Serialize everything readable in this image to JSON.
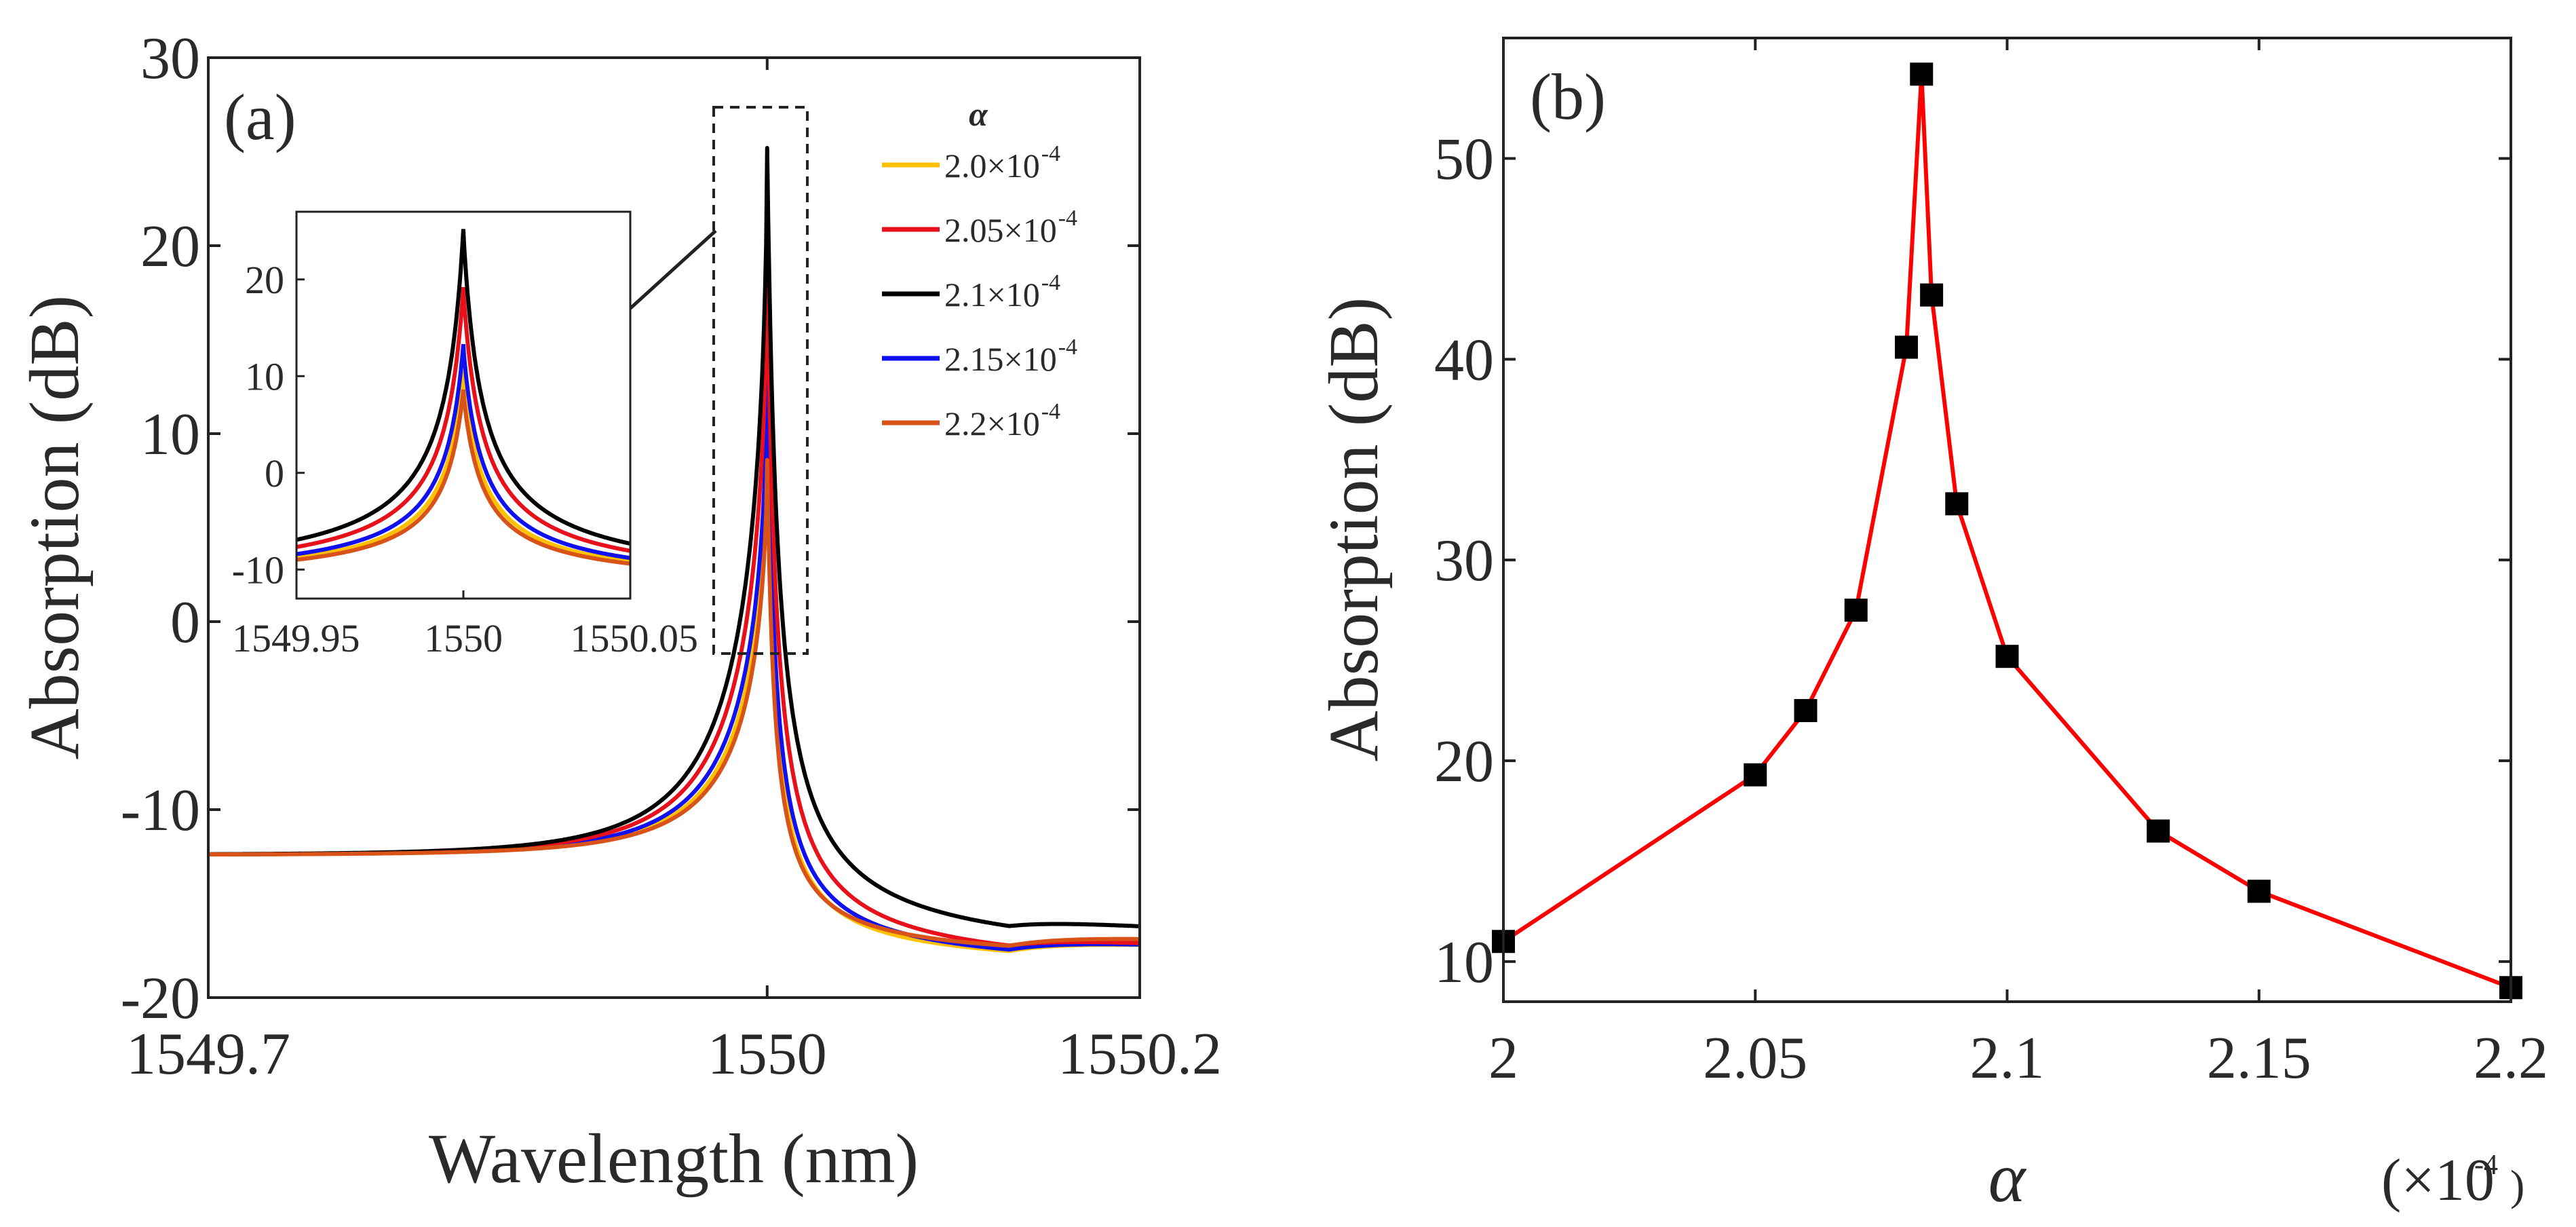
{
  "chart_data": [
    {
      "panel": "(a)",
      "type": "line",
      "xlabel": "Wavelength (nm)",
      "ylabel": "Absorption (dB)",
      "xlim": [
        1549.7,
        1550.2
      ],
      "ylim": [
        -20,
        30
      ],
      "x_ticks": [
        "1549.7",
        "1550",
        "1550.2"
      ],
      "y_ticks": [
        "-20",
        "-10",
        "0",
        "10",
        "20",
        "30"
      ],
      "legend_title": "α",
      "legend_position": "top-right",
      "series": [
        {
          "name": "2.0×10⁻⁴",
          "label_main": "2.0×10",
          "label_exp": "-4",
          "alpha": 0.0002,
          "color": "#FFC000",
          "peak_db": 10.5,
          "tail_db": -18.6
        },
        {
          "name": "2.05×10⁻⁴",
          "label_main": "2.05×10",
          "label_exp": "-4",
          "alpha": 0.000205,
          "color": "#E8101A",
          "peak_db": 19.2,
          "tail_db": -18.9
        },
        {
          "name": "2.1×10⁻⁴",
          "label_main": "2.1×10",
          "label_exp": "-4",
          "alpha": 0.00021,
          "color": "#000000",
          "peak_db": 25.2,
          "tail_db": -18.3
        },
        {
          "name": "2.15×10⁻⁴",
          "label_main": "2.15×10",
          "label_exp": "-4",
          "alpha": 0.000215,
          "color": "#1010F0",
          "peak_db": 13.3,
          "tail_db": -18.7
        },
        {
          "name": "2.2×10⁻⁴",
          "label_main": "2.2×10",
          "label_exp": "-4",
          "alpha": 0.00022,
          "color": "#D95319",
          "peak_db": 8.6,
          "tail_db": -18.2
        }
      ],
      "inset": {
        "xlim": [
          1549.95,
          1550.05
        ],
        "ylim": [
          -13,
          27
        ],
        "x_ticks": [
          "1549.95",
          "1550",
          "1550.05"
        ],
        "y_ticks": [
          "-10",
          "0",
          "10",
          "20"
        ]
      }
    },
    {
      "panel": "(b)",
      "type": "line",
      "xlabel": "α",
      "x_multiplier": "(×10",
      "x_multiplier_exp": "-4",
      "x_multiplier_close": ")",
      "ylabel": "Absorption (dB)",
      "xlim": [
        2.0,
        2.2
      ],
      "ylim": [
        8,
        56
      ],
      "x_ticks": [
        "2",
        "2.05",
        "2.1",
        "2.15",
        "2.2"
      ],
      "y_ticks": [
        "10",
        "20",
        "30",
        "40",
        "50"
      ],
      "line_color": "#FF0000",
      "marker_color": "#000000",
      "x": [
        2.0,
        2.05,
        2.06,
        2.07,
        2.08,
        2.083,
        2.085,
        2.09,
        2.1,
        2.13,
        2.15,
        2.2
      ],
      "y": [
        11.0,
        19.3,
        22.5,
        27.5,
        40.6,
        54.2,
        43.2,
        32.8,
        25.2,
        16.5,
        13.5,
        8.7
      ]
    }
  ]
}
